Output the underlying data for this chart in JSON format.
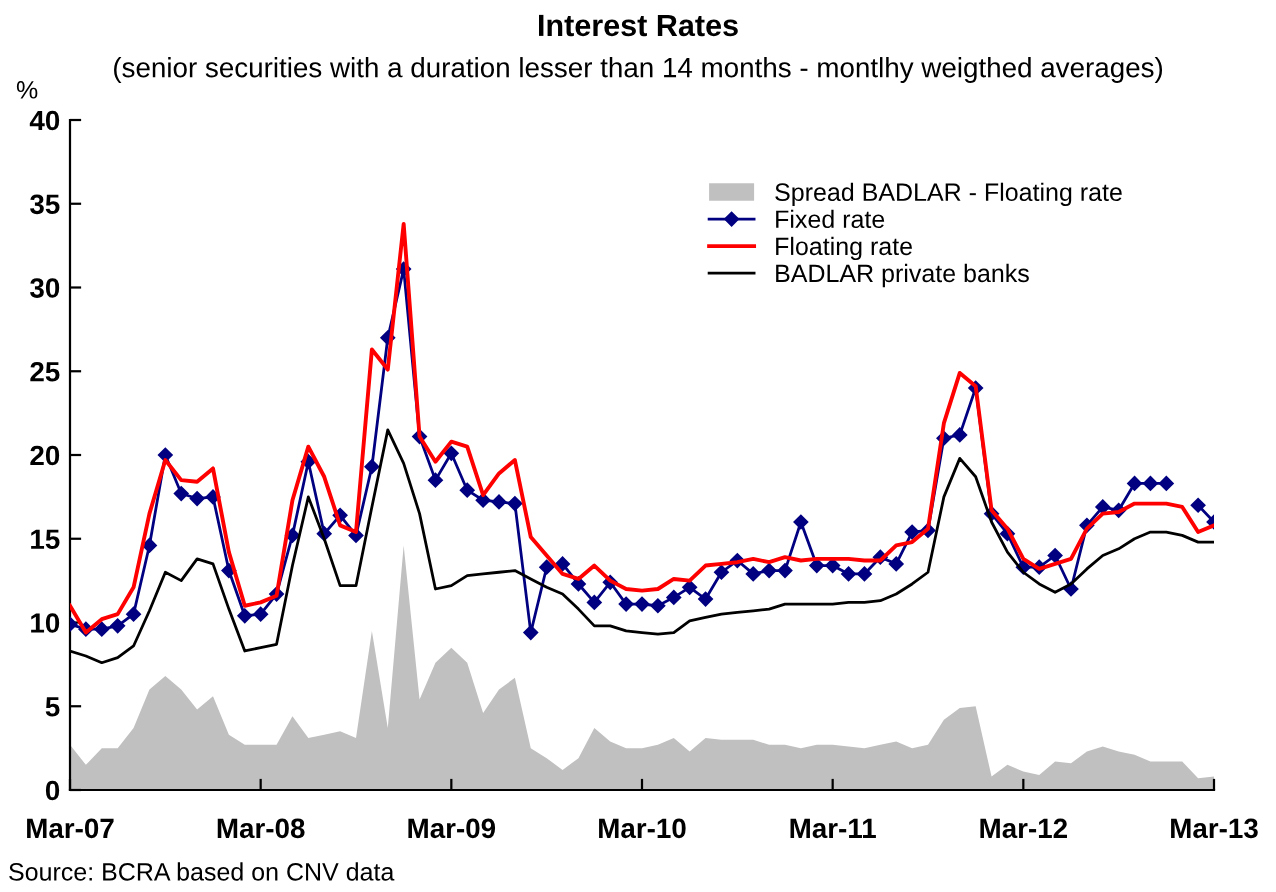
{
  "chart_data": {
    "type": "line",
    "title": "Interest Rates",
    "subtitle": "(senior securities with a duration lesser than 14 months - montlhy weigthed averages)",
    "ylabel": "%",
    "categories": [
      "Mar-07",
      null,
      null,
      null,
      null,
      null,
      null,
      null,
      null,
      null,
      null,
      null,
      "Mar-08",
      null,
      null,
      null,
      null,
      null,
      null,
      null,
      null,
      null,
      null,
      null,
      "Mar-09",
      null,
      null,
      null,
      null,
      null,
      null,
      null,
      null,
      null,
      null,
      null,
      "Mar-10",
      null,
      null,
      null,
      null,
      null,
      null,
      null,
      null,
      null,
      null,
      null,
      "Mar-11",
      null,
      null,
      null,
      null,
      null,
      null,
      null,
      null,
      null,
      null,
      null,
      "Mar-12",
      null,
      null,
      null,
      null,
      null,
      null,
      null,
      null,
      null,
      null,
      null,
      "Mar-13"
    ],
    "series": [
      {
        "name": "Spread BADLAR - Floating rate",
        "type": "area",
        "color": "#c0c0c0",
        "values": [
          2.7,
          1.5,
          2.5,
          2.5,
          3.7,
          6.0,
          6.8,
          6.0,
          4.8,
          5.6,
          3.3,
          2.7,
          2.7,
          2.7,
          4.4,
          3.1,
          3.3,
          3.5,
          3.1,
          9.5,
          3.7,
          14.6,
          5.4,
          7.6,
          8.5,
          7.6,
          4.6,
          6.0,
          6.7,
          2.5,
          1.9,
          1.2,
          1.9,
          3.7,
          2.9,
          2.5,
          2.5,
          2.7,
          3.1,
          2.3,
          3.1,
          3.0,
          3.0,
          3.0,
          2.7,
          2.7,
          2.5,
          2.7,
          2.7,
          2.6,
          2.5,
          2.7,
          2.9,
          2.5,
          2.7,
          4.2,
          4.9,
          5.0,
          0.8,
          1.5,
          1.1,
          0.9,
          1.7,
          1.6,
          2.3,
          2.6,
          2.3,
          2.1,
          1.7,
          1.7,
          1.7,
          0.7,
          0.8
        ]
      },
      {
        "name": "Fixed rate",
        "color": "#000080",
        "marker": "diamond",
        "values": [
          9.9,
          9.6,
          9.6,
          9.8,
          10.5,
          14.6,
          20.0,
          17.7,
          17.4,
          17.5,
          13.1,
          10.4,
          10.5,
          11.7,
          15.2,
          19.6,
          15.3,
          16.4,
          15.2,
          19.3,
          27.0,
          31.1,
          21.1,
          18.5,
          20.1,
          17.9,
          17.3,
          17.2,
          17.1,
          9.4,
          13.3,
          13.5,
          12.3,
          11.2,
          12.4,
          11.1,
          11.1,
          11.0,
          11.5,
          12.1,
          11.4,
          13.0,
          13.7,
          12.9,
          13.1,
          13.1,
          16.0,
          13.4,
          13.4,
          12.9,
          12.9,
          13.9,
          13.5,
          15.4,
          15.5,
          21.0,
          21.2,
          24.0,
          16.5,
          15.3,
          13.3,
          13.3,
          14.0,
          12.0,
          15.8,
          16.9,
          16.7,
          18.3,
          18.3,
          18.3,
          null,
          17.0,
          16.0
        ]
      },
      {
        "name": "Floating rate",
        "color": "#ff0000",
        "values": [
          11.0,
          9.4,
          10.2,
          10.5,
          12.1,
          16.5,
          19.7,
          18.5,
          18.4,
          19.2,
          14.2,
          11.0,
          11.2,
          11.6,
          17.3,
          20.5,
          18.7,
          15.8,
          15.4,
          26.3,
          25.1,
          33.8,
          21.1,
          19.6,
          20.8,
          20.5,
          17.6,
          18.9,
          19.7,
          15.1,
          14.0,
          12.9,
          12.6,
          13.4,
          12.5,
          12.0,
          11.9,
          12.0,
          12.6,
          12.5,
          13.4,
          13.5,
          13.6,
          13.8,
          13.6,
          13.9,
          13.7,
          13.8,
          13.8,
          13.8,
          13.7,
          13.7,
          14.6,
          14.8,
          15.6,
          21.9,
          24.9,
          24.1,
          16.7,
          15.6,
          13.8,
          13.2,
          13.5,
          13.8,
          15.6,
          16.5,
          16.6,
          17.1,
          17.1,
          17.1,
          16.9,
          15.4,
          15.8
        ]
      },
      {
        "name": "BADLAR private banks",
        "color": "#000000",
        "values": [
          8.3,
          8.0,
          7.6,
          7.9,
          8.6,
          10.7,
          13.0,
          12.5,
          13.8,
          13.5,
          10.8,
          8.3,
          8.5,
          8.7,
          13.4,
          17.5,
          15.0,
          12.2,
          12.2,
          16.9,
          21.5,
          19.5,
          16.5,
          12.0,
          12.2,
          12.8,
          12.9,
          13.0,
          13.1,
          12.6,
          12.1,
          11.7,
          10.8,
          9.8,
          9.8,
          9.5,
          9.4,
          9.3,
          9.4,
          10.1,
          10.3,
          10.5,
          10.6,
          10.7,
          10.8,
          11.1,
          11.1,
          11.1,
          11.1,
          11.2,
          11.2,
          11.3,
          11.7,
          12.3,
          13.0,
          17.5,
          19.8,
          18.7,
          16.0,
          14.2,
          13.0,
          12.3,
          11.8,
          12.3,
          13.2,
          14.0,
          14.4,
          15.0,
          15.4,
          15.4,
          15.2,
          14.8,
          14.8
        ]
      }
    ],
    "ylim": [
      0,
      40
    ],
    "yticks": [
      0,
      5,
      10,
      15,
      20,
      25,
      30,
      35,
      40
    ],
    "grid": false,
    "legend": "top right",
    "annotations": [
      "Source: BCRA based on CNV data"
    ]
  }
}
